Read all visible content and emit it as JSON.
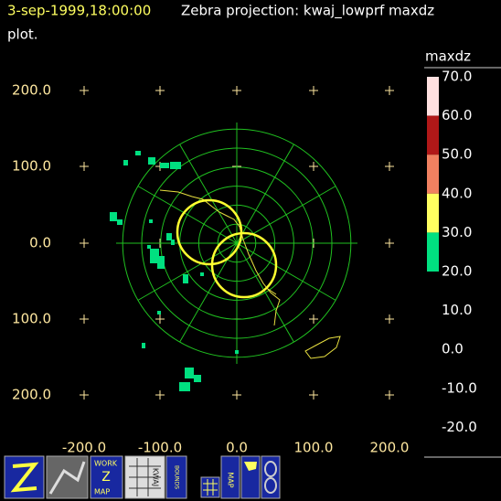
{
  "header": {
    "time": "3-sep-1999,18:00:00",
    "title": "Zebra projection: kwaj_lowprf maxdz",
    "title_cont": "plot."
  },
  "plot": {
    "y_labels": [
      "200.0",
      "100.0",
      "0.0",
      "100.0",
      "200.0"
    ],
    "x_labels": [
      "-200.0",
      "-100.0",
      "0.0",
      "100.0",
      "200.0"
    ]
  },
  "colorbar": {
    "field": "maxdz",
    "labels": [
      "70.0",
      "60.0",
      "50.0",
      "40.0",
      "30.0",
      "20.0",
      "10.0",
      "0.0",
      "-10.0",
      "-20.0"
    ]
  },
  "toolbar": {
    "work": "WORK",
    "z": "Z",
    "map": "MAP",
    "kwaj": "KWAJ",
    "bounds": "BOUNDS",
    "map2": "MAP"
  }
}
